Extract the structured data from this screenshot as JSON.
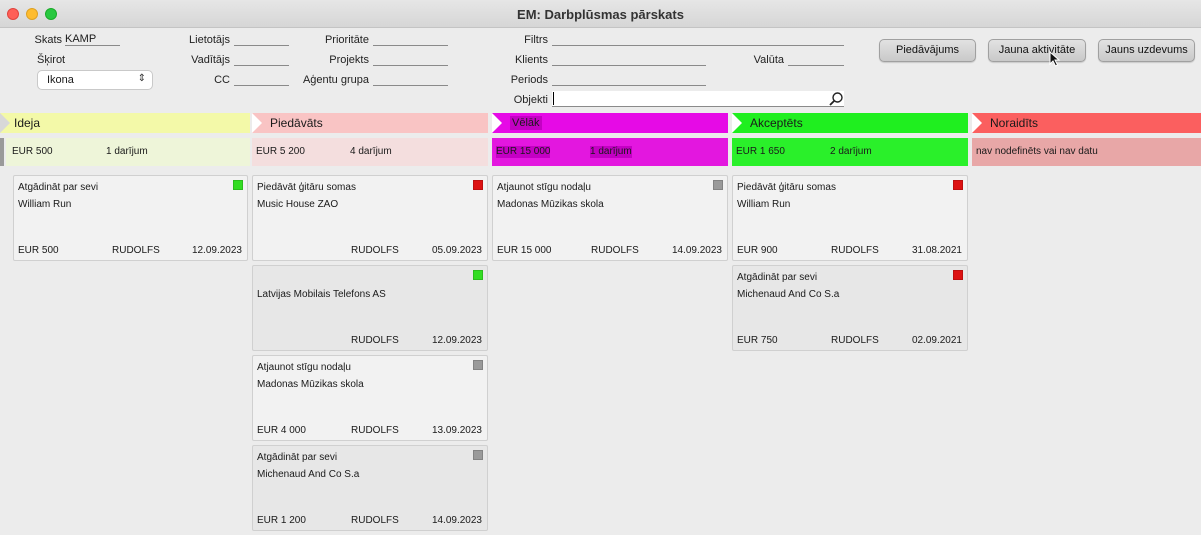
{
  "window": {
    "title": "EM: Darbplūsmas pārskats"
  },
  "filters": {
    "skats_label": "Skats",
    "skats_value": "KAMP",
    "skirot_label": "Šķirot",
    "skirot_value": "Ikona",
    "lietotajs_label": "Lietotājs",
    "vaditajs_label": "Vadītājs",
    "cc_label": "CC",
    "prioritate_label": "Prioritāte",
    "projekts_label": "Projekts",
    "agentu_grupa_label": "Aģentu grupa",
    "filtrs_label": "Filtrs",
    "klients_label": "Klients",
    "periods_label": "Periods",
    "objekti_label": "Objekti",
    "valuta_label": "Valūta"
  },
  "buttons": {
    "piedavajums": "Piedāvājums",
    "jauna_aktivitate": "Jauna aktivitāte",
    "jauns_uzdevums": "Jauns uzdevums"
  },
  "stages": [
    {
      "name": "Ideja",
      "amount": "EUR 500",
      "count": "1 darījum",
      "color": "#f3f9a8",
      "summary_color": "#eef5d9"
    },
    {
      "name": "Piedāvāts",
      "amount": "EUR 5 200",
      "count": "4 darījum",
      "color": "#f9c4c4",
      "summary_color": "#f4dede"
    },
    {
      "name": "Vēlāk",
      "amount": "EUR 15 000",
      "count": "1 darījum",
      "color": "#e60ae6",
      "summary_color": "#e317df"
    },
    {
      "name": "Akceptēts",
      "amount": "EUR 1 650",
      "count": "2 darījum",
      "color": "#1fef1f",
      "summary_color": "#2af02a"
    },
    {
      "name": "Noraidīts",
      "note": "nav nodefinēts vai nav datu",
      "color": "#fb5f5f",
      "summary_color": "#e8a7a7"
    }
  ],
  "cards": {
    "ideja": [
      {
        "title": "Atgādināt par sevi",
        "client": "William Run",
        "amount": "EUR 500",
        "owner": "RUDOLFS",
        "date": "12.09.2023",
        "status_color": "#33dd22"
      }
    ],
    "piedavats": [
      {
        "title": "Piedāvāt ģitāru somas",
        "client": "Music House ZAO",
        "amount": "",
        "owner": "RUDOLFS",
        "date": "05.09.2023",
        "status_color": "#dd1111"
      },
      {
        "title": "",
        "client": "Latvijas Mobilais Telefons AS",
        "amount": "",
        "owner": "RUDOLFS",
        "date": "12.09.2023",
        "status_color": "#33dd22"
      },
      {
        "title": "Atjaunot stīgu nodaļu",
        "client": "Madonas Mūzikas skola",
        "amount": "EUR 4 000",
        "owner": "RUDOLFS",
        "date": "13.09.2023",
        "status_color": "#9a9a9a"
      },
      {
        "title": "Atgādināt par sevi",
        "client": "Michenaud And Co S.a",
        "amount": "EUR 1 200",
        "owner": "RUDOLFS",
        "date": "14.09.2023",
        "status_color": "#9a9a9a"
      }
    ],
    "velak": [
      {
        "title": "Atjaunot stīgu nodaļu",
        "client": "Madonas Mūzikas skola",
        "amount": "EUR 15 000",
        "owner": "RUDOLFS",
        "date": "14.09.2023",
        "status_color": "#9a9a9a"
      }
    ],
    "akceptets": [
      {
        "title": "Piedāvāt ģitāru somas",
        "client": "William Run",
        "amount": "EUR 900",
        "owner": "RUDOLFS",
        "date": "31.08.2021",
        "status_color": "#dd1111"
      },
      {
        "title": "Atgādināt par sevi",
        "client": "Michenaud And Co S.a",
        "amount": "EUR 750",
        "owner": "RUDOLFS",
        "date": "02.09.2021",
        "status_color": "#dd1111"
      }
    ]
  }
}
